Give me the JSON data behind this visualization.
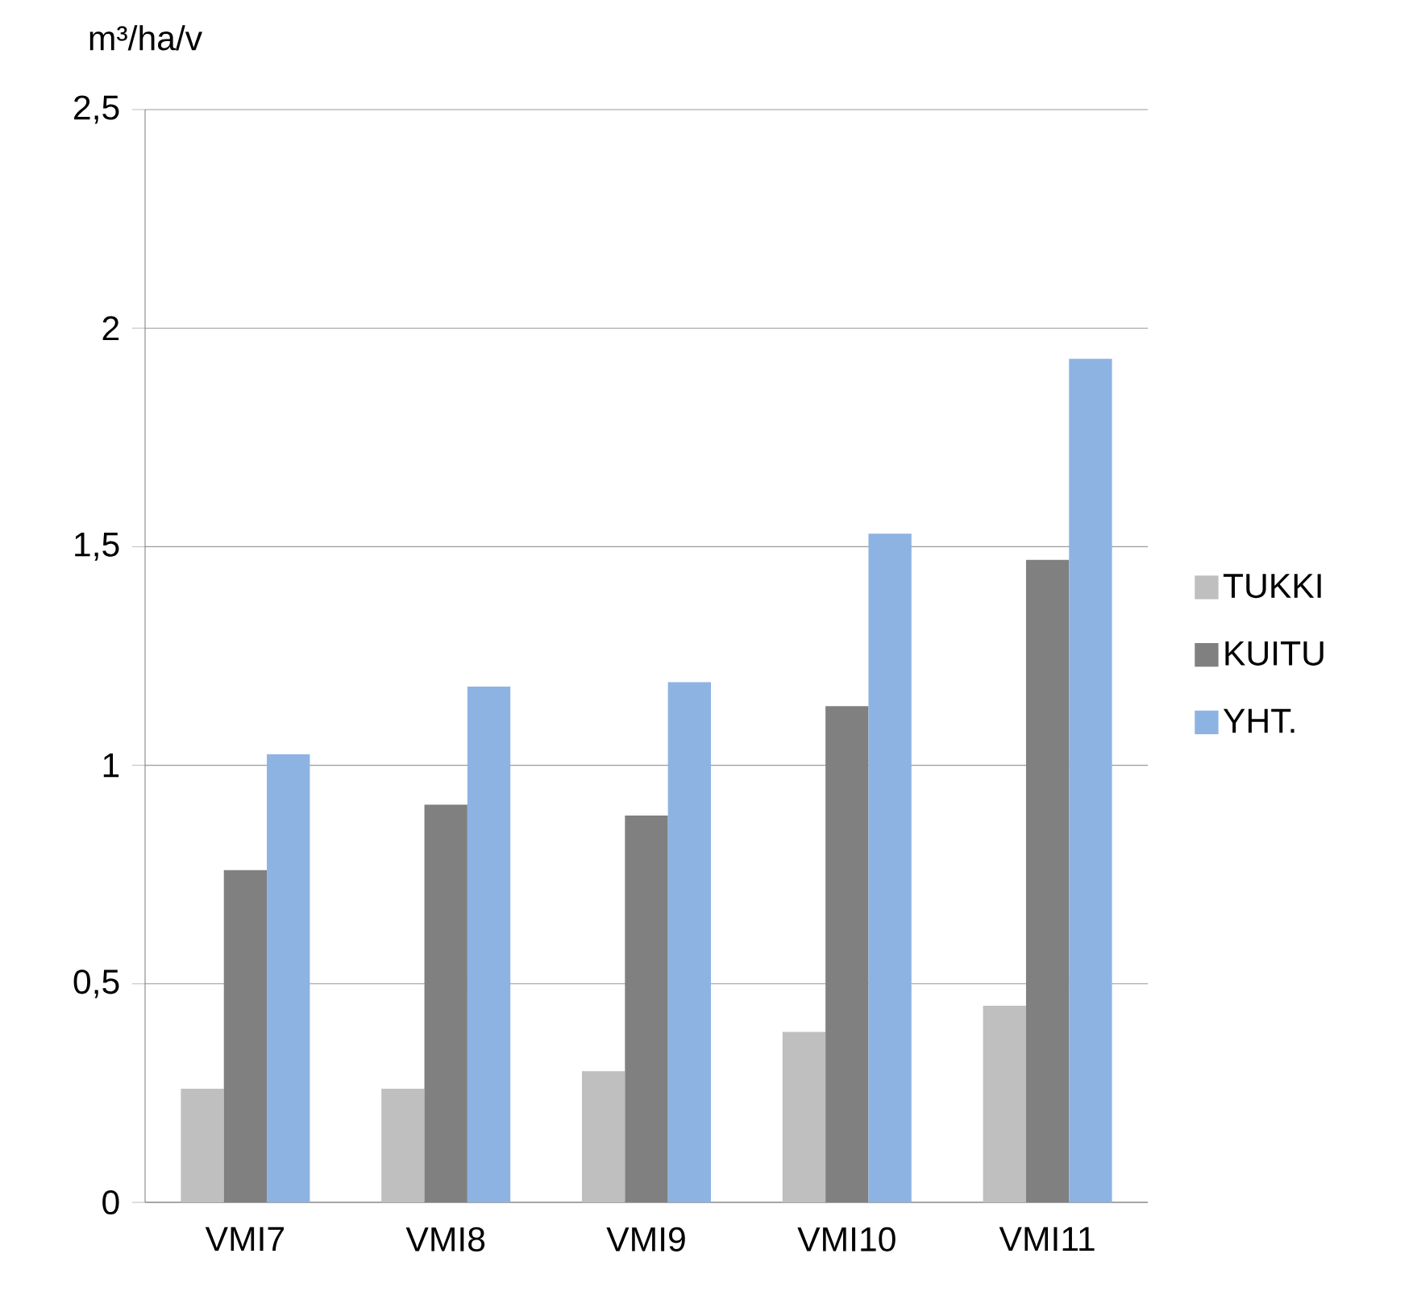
{
  "chart_data": {
    "type": "bar",
    "ylabel": "m³/ha/v",
    "categories": [
      "VMI7",
      "VMI8",
      "VMI9",
      "VMI10",
      "VMI11"
    ],
    "series": [
      {
        "name": "TUKKI",
        "color": "#bfbfbf",
        "values": [
          0.26,
          0.26,
          0.3,
          0.39,
          0.45
        ]
      },
      {
        "name": "KUITU",
        "color": "#808080",
        "values": [
          0.76,
          0.91,
          0.885,
          1.135,
          1.47
        ]
      },
      {
        "name": "YHT.",
        "color": "#8db3e2",
        "values": [
          1.025,
          1.18,
          1.19,
          1.53,
          1.93
        ]
      }
    ],
    "ylim": [
      0,
      2.5
    ],
    "yticks": [
      0,
      {
        "value": 0.5,
        "label": "0,5"
      },
      1,
      {
        "value": 1.5,
        "label": "1,5"
      },
      2,
      {
        "value": 2.5,
        "label": "2,5"
      }
    ],
    "grid": "y",
    "legend": "right"
  }
}
